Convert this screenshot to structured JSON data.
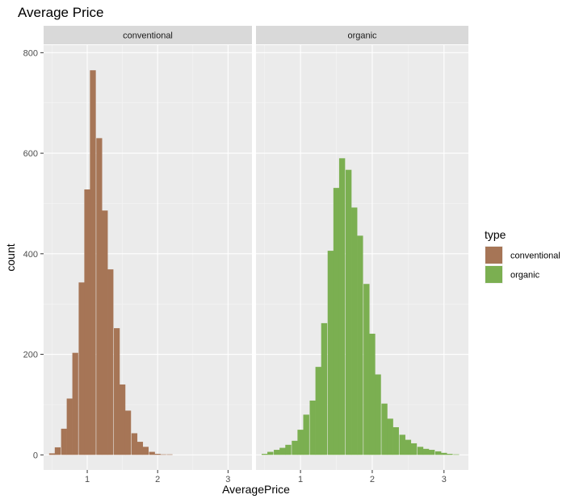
{
  "chart_data": {
    "type": "bar",
    "title": "Average Price",
    "xlabel": "AveragePrice",
    "ylabel": "count",
    "xlim": [
      0.38,
      3.34
    ],
    "ylim": [
      -30,
      815
    ],
    "bin_width": 0.0833,
    "x_ticks": [
      1,
      2,
      3
    ],
    "y_ticks": [
      0,
      200,
      400,
      600,
      800
    ],
    "grid": true,
    "legend": {
      "title": "type",
      "position": "right",
      "items": [
        {
          "label": "conventional",
          "color": "#A67556"
        },
        {
          "label": "organic",
          "color": "#7BAF51"
        }
      ]
    },
    "panels": [
      {
        "strip": "conventional",
        "color": "#A67556",
        "x": [
          0.5,
          0.58,
          0.67,
          0.75,
          0.83,
          0.92,
          1.0,
          1.08,
          1.17,
          1.25,
          1.33,
          1.42,
          1.5,
          1.58,
          1.67,
          1.75,
          1.83,
          1.92,
          2.0,
          2.08,
          2.17,
          2.25
        ],
        "values": [
          3,
          15,
          52,
          112,
          203,
          343,
          528,
          765,
          630,
          486,
          369,
          252,
          140,
          88,
          43,
          26,
          16,
          6,
          2,
          1,
          1,
          0
        ]
      },
      {
        "strip": "organic",
        "color": "#7BAF51",
        "x": [
          0.5,
          0.58,
          0.67,
          0.75,
          0.83,
          0.92,
          1.0,
          1.08,
          1.17,
          1.25,
          1.33,
          1.42,
          1.5,
          1.58,
          1.67,
          1.75,
          1.83,
          1.92,
          2.0,
          2.08,
          2.17,
          2.25,
          2.33,
          2.42,
          2.5,
          2.58,
          2.67,
          2.75,
          2.83,
          2.92,
          3.0,
          3.08,
          3.17,
          3.25
        ],
        "values": [
          2,
          6,
          10,
          14,
          20,
          28,
          50,
          80,
          108,
          175,
          262,
          406,
          531,
          590,
          567,
          492,
          436,
          340,
          241,
          160,
          102,
          72,
          55,
          40,
          30,
          23,
          16,
          12,
          10,
          7,
          4,
          2,
          1,
          0
        ]
      }
    ]
  }
}
